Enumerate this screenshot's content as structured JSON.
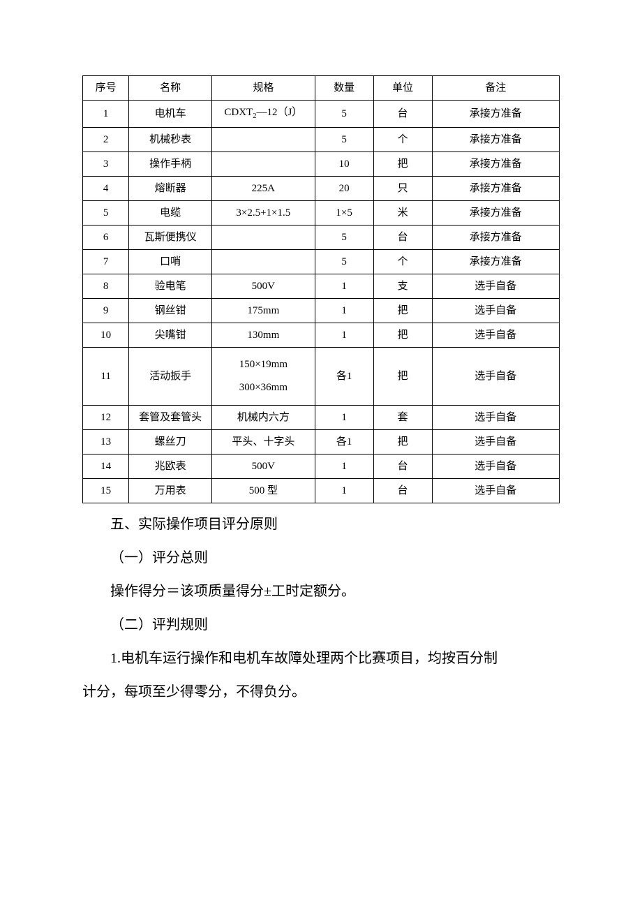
{
  "table": {
    "border_color": "#000000",
    "background_color": "#ffffff",
    "text_color": "#000000",
    "cell_fontsize": 15,
    "columns": [
      {
        "key": "seq",
        "label": "序号",
        "width_pct": 9.7
      },
      {
        "key": "name",
        "label": "名称",
        "width_pct": 17.4
      },
      {
        "key": "spec",
        "label": "规格",
        "width_pct": 21.6
      },
      {
        "key": "qty",
        "label": "数量",
        "width_pct": 12.3
      },
      {
        "key": "unit",
        "label": "单位",
        "width_pct": 12.3
      },
      {
        "key": "note",
        "label": "备注",
        "width_pct": 26.7
      }
    ],
    "rows": [
      {
        "seq": "1",
        "name": "电机车",
        "spec_html": "CDXT<span class=\"sub\">2</span>—12（J）",
        "qty": "5",
        "unit": "台",
        "note": "承接方准备"
      },
      {
        "seq": "2",
        "name": "机械秒表",
        "spec": "",
        "qty": "5",
        "unit": "个",
        "note": "承接方准备"
      },
      {
        "seq": "3",
        "name": "操作手柄",
        "spec": "",
        "qty": "10",
        "unit": "把",
        "note": "承接方准备"
      },
      {
        "seq": "4",
        "name": "熔断器",
        "spec": "225A",
        "qty": "20",
        "unit": "只",
        "note": "承接方准备"
      },
      {
        "seq": "5",
        "name": "电缆",
        "spec": "3×2.5+1×1.5",
        "qty": "1×5",
        "unit": "米",
        "note": "承接方准备"
      },
      {
        "seq": "6",
        "name": "瓦斯便携仪",
        "spec": "",
        "qty": "5",
        "unit": "台",
        "note": "承接方准备"
      },
      {
        "seq": "7",
        "name": "口哨",
        "spec": "",
        "qty": "5",
        "unit": "个",
        "note": "承接方准备"
      },
      {
        "seq": "8",
        "name": "验电笔",
        "spec": "500V",
        "qty": "1",
        "unit": "支",
        "note": "选手自备"
      },
      {
        "seq": "9",
        "name": "钢丝钳",
        "spec": "175mm",
        "qty": "1",
        "unit": "把",
        "note": "选手自备"
      },
      {
        "seq": "10",
        "name": "尖嘴钳",
        "spec": "130mm",
        "qty": "1",
        "unit": "把",
        "note": "选手自备"
      },
      {
        "seq": "11",
        "name": "活动扳手",
        "spec_multiline": "150×19mm\n300×36mm",
        "qty": "各1",
        "unit": "把",
        "note": "选手自备"
      },
      {
        "seq": "12",
        "name": "套管及套管头",
        "spec": "机械内六方",
        "qty": "1",
        "unit": "套",
        "note": "选手自备"
      },
      {
        "seq": "13",
        "name": "螺丝刀",
        "spec": "平头、十字头",
        "qty": "各1",
        "unit": "把",
        "note": "选手自备"
      },
      {
        "seq": "14",
        "name": "兆欧表",
        "spec": "500V",
        "qty": "1",
        "unit": "台",
        "note": "选手自备"
      },
      {
        "seq": "15",
        "name": "万用表",
        "spec": "500 型",
        "qty": "1",
        "unit": "台",
        "note": "选手自备"
      }
    ]
  },
  "prose": {
    "fontsize": 20,
    "line_height": 2.4,
    "text_color": "#000000",
    "paragraphs": [
      "五、实际操作项目评分原则",
      "（一）评分总则",
      "操作得分＝该项质量得分±工时定额分。",
      "（二）评判规则",
      "1.电机车运行操作和电机车故障处理两个比赛项目，均按百分制",
      "计分，每项至少得零分，不得负分。"
    ]
  }
}
